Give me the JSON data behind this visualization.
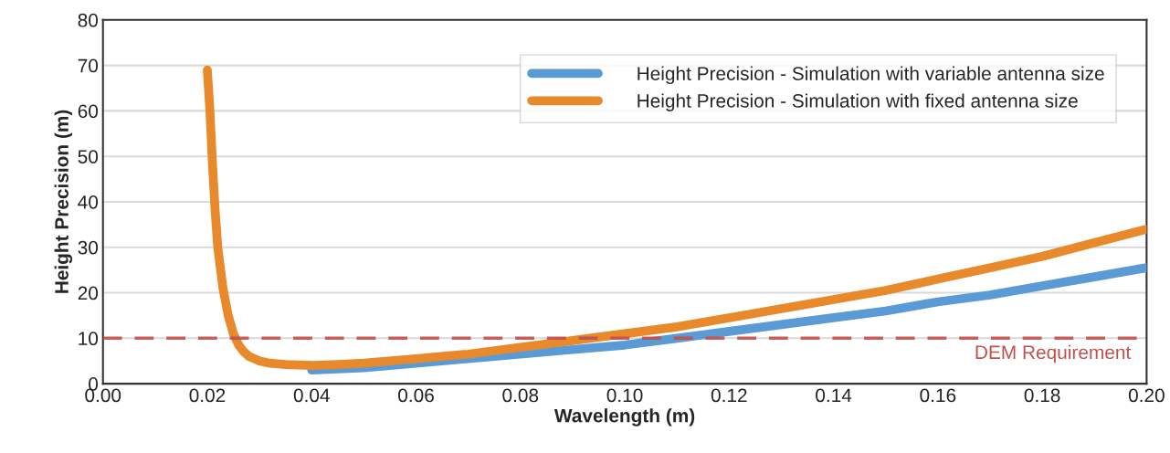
{
  "chart_data": {
    "type": "line",
    "xlabel": "Wavelength (m)",
    "ylabel": "Height Precision (m)",
    "series": [
      {
        "name": "Height Precision - Simulation with variable antenna size",
        "color": "#5b9bd5",
        "x": [
          0.04,
          0.05,
          0.06,
          0.07,
          0.08,
          0.09,
          0.1,
          0.11,
          0.12,
          0.13,
          0.14,
          0.15,
          0.16,
          0.17,
          0.18,
          0.19,
          0.2
        ],
        "values": [
          3,
          3.5,
          4.5,
          5.5,
          6.5,
          7.5,
          8.5,
          10,
          11.5,
          13,
          14.5,
          16,
          18,
          19.5,
          21.5,
          23.5,
          25.5
        ]
      },
      {
        "name": "Height Precision - Simulation with fixed antenna size",
        "color": "#e8892b",
        "x": [
          0.02,
          0.0205,
          0.021,
          0.0215,
          0.022,
          0.023,
          0.024,
          0.025,
          0.026,
          0.027,
          0.028,
          0.03,
          0.032,
          0.035,
          0.04,
          0.045,
          0.05,
          0.06,
          0.07,
          0.08,
          0.09,
          0.1,
          0.11,
          0.12,
          0.13,
          0.14,
          0.15,
          0.16,
          0.17,
          0.18,
          0.19,
          0.2
        ],
        "values": [
          69,
          60,
          48,
          38,
          30,
          21,
          15,
          11,
          8.5,
          7,
          6,
          5,
          4.5,
          4.2,
          4,
          4.2,
          4.5,
          5.5,
          6.5,
          8,
          9.5,
          11,
          12.5,
          14.5,
          16.5,
          18.5,
          20.5,
          23,
          25.5,
          28,
          31,
          34
        ]
      }
    ],
    "xlim": [
      0.0,
      0.2
    ],
    "xticks": [
      {
        "value": 0.0,
        "label": "0.00"
      },
      {
        "value": 0.02,
        "label": "0.02"
      },
      {
        "value": 0.04,
        "label": "0.04"
      },
      {
        "value": 0.06,
        "label": "0.06"
      },
      {
        "value": 0.08,
        "label": "0.08"
      },
      {
        "value": 0.1,
        "label": "0.10"
      },
      {
        "value": 0.12,
        "label": "0.12"
      },
      {
        "value": 0.14,
        "label": "0.14"
      },
      {
        "value": 0.16,
        "label": "0.16"
      },
      {
        "value": 0.18,
        "label": "0.18"
      },
      {
        "value": 0.2,
        "label": "0.20"
      }
    ],
    "ylim": [
      0,
      80
    ],
    "yticks": [
      0,
      10,
      20,
      30,
      40,
      50,
      60,
      70,
      80
    ],
    "ref_lines": [
      {
        "axis": "y",
        "value": 10,
        "label": "DEM Requirement",
        "color": "#c0504d",
        "line_style": "dashed"
      }
    ],
    "grid": "y",
    "legend": "top right",
    "marker": "none",
    "line_style": "solid"
  }
}
